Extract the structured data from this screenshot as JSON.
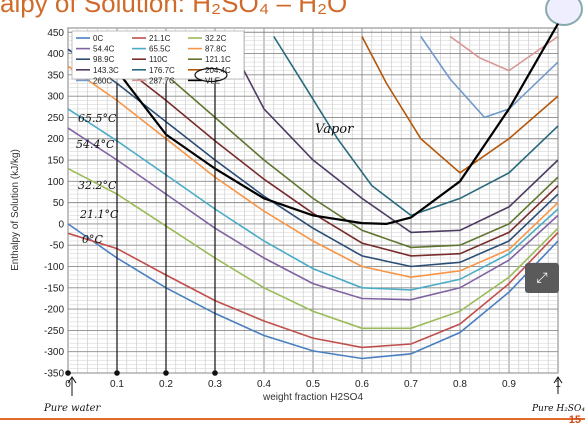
{
  "slide": {
    "title": "alpy of Solution: H₂SO₄ – H₂O",
    "page_number": "15",
    "expand_icon": "expand-icon",
    "seal_icon": "seal-logo"
  },
  "handwritten": {
    "pure_water": "Pure water",
    "pure_h2so4": "Pure H₂SO₄",
    "vapor": "Vapor",
    "temp_labels": [
      "65.5°C",
      "54.4°C",
      "32.2°C",
      "21.1°C",
      "0°C"
    ]
  },
  "chart_data": {
    "type": "line",
    "title": "",
    "xlabel": "weight fraction H2SO4",
    "ylabel": "Enthalpy of Solution (kJ/kg)",
    "xlim": [
      0,
      1
    ],
    "ylim": [
      -350,
      460
    ],
    "xticks": [
      "0",
      "0.1",
      "0.2",
      "0.3",
      "0.4",
      "0.5",
      "0.6",
      "0.7",
      "0.8",
      "0.9",
      "1"
    ],
    "yticks": [
      "450",
      "400",
      "350",
      "300",
      "250",
      "200",
      "150",
      "100",
      "50",
      "0",
      "-50",
      "-100",
      "-150",
      "-200",
      "-250",
      "-300",
      "-350"
    ],
    "grid": true,
    "legend_position": "top-left",
    "series": [
      {
        "name": "0C",
        "color": "#4a7fc1",
        "points": [
          [
            0,
            0
          ],
          [
            0.1,
            -80
          ],
          [
            0.2,
            -150
          ],
          [
            0.3,
            -210
          ],
          [
            0.4,
            -262
          ],
          [
            0.5,
            -298
          ],
          [
            0.6,
            -316
          ],
          [
            0.7,
            -305
          ],
          [
            0.8,
            -255
          ],
          [
            0.9,
            -160
          ],
          [
            1,
            -40
          ]
        ]
      },
      {
        "name": "21.1C",
        "color": "#c0504d",
        "points": [
          [
            0,
            -22
          ],
          [
            0.1,
            -58
          ],
          [
            0.2,
            -120
          ],
          [
            0.3,
            -180
          ],
          [
            0.4,
            -228
          ],
          [
            0.5,
            -268
          ],
          [
            0.6,
            -290
          ],
          [
            0.7,
            -282
          ],
          [
            0.8,
            -235
          ],
          [
            0.9,
            -140
          ],
          [
            1,
            -20
          ]
        ]
      },
      {
        "name": "32.2C",
        "color": "#9bbb59",
        "points": [
          [
            0,
            130
          ],
          [
            0.1,
            70
          ],
          [
            0.2,
            -5
          ],
          [
            0.3,
            -80
          ],
          [
            0.4,
            -150
          ],
          [
            0.5,
            -205
          ],
          [
            0.6,
            -245
          ],
          [
            0.7,
            -245
          ],
          [
            0.8,
            -205
          ],
          [
            0.9,
            -125
          ],
          [
            1,
            -10
          ]
        ]
      },
      {
        "name": "54.4C",
        "color": "#8064a2",
        "points": [
          [
            0,
            225
          ],
          [
            0.1,
            150
          ],
          [
            0.2,
            70
          ],
          [
            0.3,
            -10
          ],
          [
            0.4,
            -80
          ],
          [
            0.5,
            -140
          ],
          [
            0.6,
            -175
          ],
          [
            0.7,
            -178
          ],
          [
            0.8,
            -150
          ],
          [
            0.9,
            -85
          ],
          [
            1,
            20
          ]
        ]
      },
      {
        "name": "65.5C",
        "color": "#4bacc6",
        "points": [
          [
            0,
            270
          ],
          [
            0.1,
            195
          ],
          [
            0.2,
            115
          ],
          [
            0.3,
            35
          ],
          [
            0.4,
            -40
          ],
          [
            0.5,
            -105
          ],
          [
            0.6,
            -150
          ],
          [
            0.7,
            -155
          ],
          [
            0.8,
            -130
          ],
          [
            0.9,
            -70
          ],
          [
            1,
            35
          ]
        ]
      },
      {
        "name": "87.8C",
        "color": "#f79646",
        "points": [
          [
            0,
            370
          ],
          [
            0.1,
            290
          ],
          [
            0.2,
            200
          ],
          [
            0.3,
            110
          ],
          [
            0.4,
            30
          ],
          [
            0.5,
            -40
          ],
          [
            0.6,
            -100
          ],
          [
            0.7,
            -125
          ],
          [
            0.8,
            -110
          ],
          [
            0.9,
            -60
          ],
          [
            1,
            50
          ]
        ]
      },
      {
        "name": "98.9C",
        "color": "#2c4d75",
        "points": [
          [
            0,
            410
          ],
          [
            0.1,
            330
          ],
          [
            0.2,
            240
          ],
          [
            0.3,
            150
          ],
          [
            0.4,
            65
          ],
          [
            0.5,
            -10
          ],
          [
            0.6,
            -75
          ],
          [
            0.7,
            -100
          ],
          [
            0.8,
            -90
          ],
          [
            0.9,
            -40
          ],
          [
            1,
            70
          ]
        ]
      },
      {
        "name": "110C",
        "color": "#772c2a",
        "points": [
          [
            0.05,
            440
          ],
          [
            0.1,
            380
          ],
          [
            0.2,
            290
          ],
          [
            0.3,
            195
          ],
          [
            0.4,
            105
          ],
          [
            0.5,
            25
          ],
          [
            0.6,
            -45
          ],
          [
            0.7,
            -75
          ],
          [
            0.8,
            -70
          ],
          [
            0.9,
            -20
          ],
          [
            1,
            90
          ]
        ]
      },
      {
        "name": "121.1C",
        "color": "#5f7530",
        "points": [
          [
            0.15,
            440
          ],
          [
            0.2,
            350
          ],
          [
            0.3,
            250
          ],
          [
            0.4,
            150
          ],
          [
            0.5,
            60
          ],
          [
            0.6,
            -15
          ],
          [
            0.7,
            -55
          ],
          [
            0.8,
            -50
          ],
          [
            0.9,
            0
          ],
          [
            1,
            110
          ]
        ]
      },
      {
        "name": "143.3C",
        "color": "#4d3b62",
        "points": [
          [
            0.3,
            440
          ],
          [
            0.35,
            380
          ],
          [
            0.4,
            270
          ],
          [
            0.5,
            150
          ],
          [
            0.6,
            60
          ],
          [
            0.7,
            -20
          ],
          [
            0.8,
            -15
          ],
          [
            0.9,
            40
          ],
          [
            1,
            150
          ]
        ]
      },
      {
        "name": "176.7C",
        "color": "#276a7c",
        "points": [
          [
            0.42,
            440
          ],
          [
            0.48,
            330
          ],
          [
            0.55,
            200
          ],
          [
            0.62,
            90
          ],
          [
            0.7,
            20
          ],
          [
            0.8,
            60
          ],
          [
            0.9,
            120
          ],
          [
            1,
            230
          ]
        ]
      },
      {
        "name": "204.4C",
        "color": "#b65708",
        "points": [
          [
            0.6,
            440
          ],
          [
            0.65,
            330
          ],
          [
            0.72,
            200
          ],
          [
            0.8,
            120
          ],
          [
            0.9,
            200
          ],
          [
            1,
            300
          ]
        ]
      },
      {
        "name": "260C",
        "color": "#729aca",
        "points": [
          [
            0.72,
            440
          ],
          [
            0.78,
            340
          ],
          [
            0.85,
            250
          ],
          [
            0.9,
            270
          ],
          [
            1,
            380
          ]
        ]
      },
      {
        "name": "287.7C",
        "color": "#d99694",
        "points": [
          [
            0.78,
            440
          ],
          [
            0.84,
            390
          ],
          [
            0.9,
            360
          ],
          [
            1,
            440
          ]
        ]
      },
      {
        "name": "VLE",
        "color": "#000000",
        "points": [
          [
            0.1,
            360
          ],
          [
            0.2,
            210
          ],
          [
            0.3,
            130
          ],
          [
            0.4,
            60
          ],
          [
            0.5,
            20
          ],
          [
            0.6,
            2
          ],
          [
            0.65,
            0
          ],
          [
            0.7,
            15
          ],
          [
            0.8,
            100
          ],
          [
            0.9,
            270
          ],
          [
            1,
            470
          ]
        ]
      }
    ]
  }
}
